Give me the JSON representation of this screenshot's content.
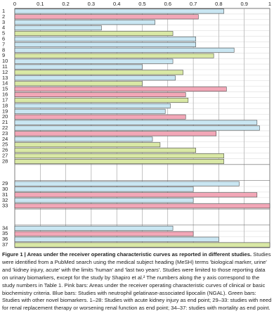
{
  "chart_data": {
    "type": "bar",
    "orientation": "horizontal",
    "categories": [
      "1",
      "2",
      "3",
      "4",
      "5",
      "6",
      "7",
      "8",
      "9",
      "10",
      "11",
      "12",
      "13",
      "14",
      "15",
      "16",
      "17",
      "18",
      "19",
      "20",
      "21",
      "22",
      "23",
      "24",
      "25",
      "26",
      "27",
      "28",
      null,
      "29",
      "30",
      "31",
      "32",
      "33",
      null,
      "34",
      "35",
      "36",
      "37"
    ],
    "values": [
      0.82,
      0.72,
      0.55,
      0.34,
      0.62,
      0.71,
      0.71,
      0.86,
      0.78,
      0.62,
      0.5,
      0.66,
      0.63,
      0.5,
      0.83,
      0.67,
      0.68,
      0.61,
      0.59,
      0.67,
      0.95,
      0.96,
      0.79,
      0.54,
      0.57,
      0.71,
      0.82,
      0.82,
      null,
      0.88,
      0.7,
      0.95,
      0.7,
      1.0,
      null,
      0.62,
      0.7,
      0.8,
      1.0
    ],
    "colors": [
      "#c9e6f2",
      "#f2a7b7",
      "#c9e6f2",
      "#c9e6f2",
      "#d9e8a5",
      "#c9e6f2",
      "#c9e6f2",
      "#c9e6f2",
      "#d9e8a5",
      "#c9e6f2",
      "#c9e6f2",
      "#d9e8a5",
      "#c9e6f2",
      "#d9e8a5",
      "#f2a7b7",
      "#f2a7b7",
      "#d9e8a5",
      "#c9e6f2",
      "#c9e6f2",
      "#f2a7b7",
      "#c9e6f2",
      "#c9e6f2",
      "#f2a7b7",
      "#c9e6f2",
      "#d9e8a5",
      "#d9e8a5",
      "#d9e8a5",
      "#d9e8a5",
      null,
      "#c9e6f2",
      "#c9e6f2",
      "#f2a7b7",
      "#c9e6f2",
      "#f2a7b7",
      null,
      "#c9e6f2",
      "#f2a7b7",
      "#c9e6f2",
      "#d9e8a5"
    ],
    "xlim": [
      0,
      1
    ],
    "xticks": [
      0,
      0.1,
      0.2,
      0.3,
      0.4,
      0.5,
      0.6,
      0.7,
      0.8,
      0.9,
      1
    ],
    "grid": true
  },
  "caption": {
    "title": "Figure 1 | Areas under the receiver operating characteristic curves as reported in different studies.",
    "text": "Studies were identified from a PubMed search using the medical subject heading (MeSH) terms 'biological marker, urine' and 'kidney injury, acute' with the limits 'human' and 'last two years'. Studies were limited to those reporting data on urinary biomarkers, except for the study by Shapiro et al.² The numbers along the y axis correspond to the study numbers in Table 1. Pink bars: Areas under the receiver operating characteristic curves of clinical or basic biochemistry criteria. Blue bars: Studies with neutrophil gelatinase-associated lipocalin (NGAL). Green bars: Studies with other novel biomarkers. 1–28: Studies with acute kidney injury as end point; 29–33: studies with need for renal replacement therapy or worsening renal function as end point; 34–37: studies with mortality as end point."
  }
}
